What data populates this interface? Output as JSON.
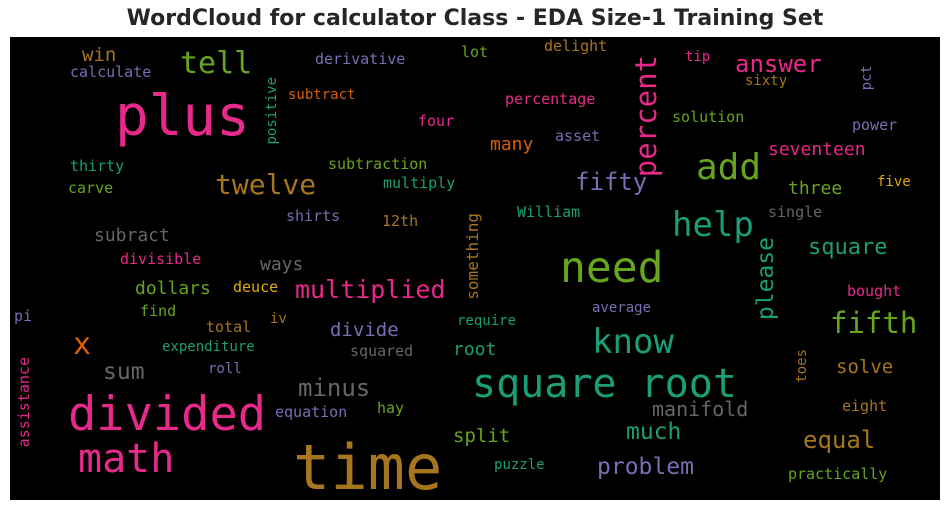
{
  "title": "WordCloud for calculator Class - EDA Size-1 Training Set",
  "palette": {
    "pink": "#e7298a",
    "green": "#66a61e",
    "teal": "#1b9e77",
    "gold": "#a6761d",
    "orange": "#d95f02",
    "purple": "#7570b3",
    "gray": "#666666",
    "yellow": "#e6ab02"
  },
  "words": [
    {
      "text": "time",
      "color": "gold"
    },
    {
      "text": "square root",
      "color": "teal"
    },
    {
      "text": "plus",
      "color": "pink"
    },
    {
      "text": "divided",
      "color": "pink"
    },
    {
      "text": "need",
      "color": "green"
    },
    {
      "text": "math",
      "color": "pink"
    },
    {
      "text": "add",
      "color": "green"
    },
    {
      "text": "help",
      "color": "teal"
    },
    {
      "text": "know",
      "color": "teal"
    },
    {
      "text": "percent",
      "color": "pink"
    },
    {
      "text": "twelve",
      "color": "gold"
    },
    {
      "text": "tell",
      "color": "green"
    },
    {
      "text": "fifth",
      "color": "green"
    },
    {
      "text": "multiplied",
      "color": "pink"
    },
    {
      "text": "fifty",
      "color": "purple"
    },
    {
      "text": "answer",
      "color": "pink"
    },
    {
      "text": "problem",
      "color": "purple"
    },
    {
      "text": "equal",
      "color": "gold"
    },
    {
      "text": "minus",
      "color": "gray"
    },
    {
      "text": "please",
      "color": "teal"
    },
    {
      "text": "square",
      "color": "teal"
    },
    {
      "text": "much",
      "color": "teal"
    },
    {
      "text": "x",
      "color": "orange"
    },
    {
      "text": "sum",
      "color": "gray"
    },
    {
      "text": "manifold",
      "color": "gray"
    },
    {
      "text": "seventeen",
      "color": "pink"
    },
    {
      "text": "divide",
      "color": "purple"
    },
    {
      "text": "split",
      "color": "green"
    },
    {
      "text": "solve",
      "color": "gold"
    },
    {
      "text": "three",
      "color": "green"
    },
    {
      "text": "dollars",
      "color": "green"
    },
    {
      "text": "subract",
      "color": "gray"
    },
    {
      "text": "root",
      "color": "teal"
    },
    {
      "text": "something",
      "color": "gold"
    },
    {
      "text": "ways",
      "color": "gray"
    },
    {
      "text": "many",
      "color": "orange"
    },
    {
      "text": "win",
      "color": "gold"
    },
    {
      "text": "derivative",
      "color": "purple"
    },
    {
      "text": "calculate",
      "color": "purple"
    },
    {
      "text": "lot",
      "color": "green"
    },
    {
      "text": "delight",
      "color": "gold"
    },
    {
      "text": "tip",
      "color": "pink"
    },
    {
      "text": "sixty",
      "color": "gold"
    },
    {
      "text": "pct",
      "color": "purple"
    },
    {
      "text": "positive",
      "color": "teal"
    },
    {
      "text": "subtract",
      "color": "orange"
    },
    {
      "text": "percentage",
      "color": "pink"
    },
    {
      "text": "four",
      "color": "pink"
    },
    {
      "text": "solution",
      "color": "green"
    },
    {
      "text": "power",
      "color": "purple"
    },
    {
      "text": "asset",
      "color": "purple"
    },
    {
      "text": "thirty",
      "color": "teal"
    },
    {
      "text": "subtraction",
      "color": "green"
    },
    {
      "text": "carve",
      "color": "green"
    },
    {
      "text": "multiply",
      "color": "teal"
    },
    {
      "text": "five",
      "color": "yellow"
    },
    {
      "text": "shirts",
      "color": "purple"
    },
    {
      "text": "12th",
      "color": "gold"
    },
    {
      "text": "William",
      "color": "teal"
    },
    {
      "text": "single",
      "color": "gray"
    },
    {
      "text": "divisible",
      "color": "pink"
    },
    {
      "text": "deuce",
      "color": "yellow"
    },
    {
      "text": "bought",
      "color": "pink"
    },
    {
      "text": "pi",
      "color": "purple"
    },
    {
      "text": "find",
      "color": "green"
    },
    {
      "text": "iv",
      "color": "gold"
    },
    {
      "text": "require",
      "color": "teal"
    },
    {
      "text": "average",
      "color": "purple"
    },
    {
      "text": "total",
      "color": "gold"
    },
    {
      "text": "expenditure",
      "color": "teal"
    },
    {
      "text": "squared",
      "color": "gray"
    },
    {
      "text": "roll",
      "color": "purple"
    },
    {
      "text": "toes",
      "color": "gold"
    },
    {
      "text": "assistance",
      "color": "pink"
    },
    {
      "text": "equation",
      "color": "purple"
    },
    {
      "text": "hay",
      "color": "green"
    },
    {
      "text": "eight",
      "color": "gold"
    },
    {
      "text": "puzzle",
      "color": "teal"
    },
    {
      "text": "practically",
      "color": "green"
    }
  ]
}
